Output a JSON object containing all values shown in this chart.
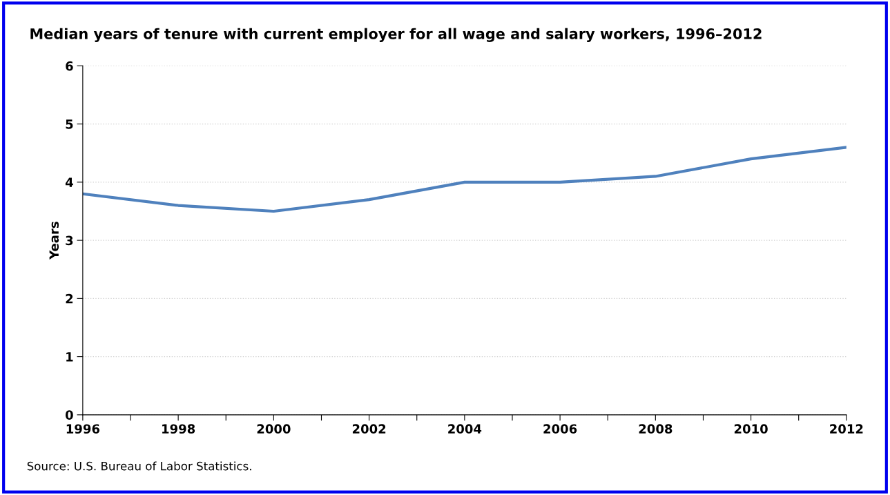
{
  "chart_data": {
    "type": "line",
    "title": "Median years of tenure with current employer for all wage and salary workers, 1996–2012",
    "ylabel": "Years",
    "x": [
      1996,
      1998,
      2000,
      2002,
      2004,
      2006,
      2008,
      2010,
      2012
    ],
    "series": [
      {
        "color": "#4f81bd",
        "values": [
          3.8,
          3.6,
          3.5,
          3.7,
          4.0,
          4.0,
          4.1,
          4.4,
          4.6
        ]
      }
    ],
    "xlim": [
      1996,
      2012
    ],
    "xticks": [
      1996,
      {
        "value": 1997,
        "label": null
      },
      1998,
      {
        "value": 1999,
        "label": null
      },
      2000,
      {
        "value": 2001,
        "label": null
      },
      2002,
      {
        "value": 2003,
        "label": null
      },
      2004,
      {
        "value": 2005,
        "label": null
      },
      2006,
      {
        "value": 2007,
        "label": null
      },
      2008,
      {
        "value": 2009,
        "label": null
      },
      2010,
      {
        "value": 2011,
        "label": null
      },
      2012
    ],
    "ylim": [
      0,
      6
    ],
    "yticks": [
      0,
      1,
      2,
      3,
      4,
      5,
      6
    ],
    "grid": "y",
    "marker": "none",
    "line_style": "solid",
    "annotations": [
      "Source: U.S. Bureau of Labor Statistics."
    ]
  }
}
